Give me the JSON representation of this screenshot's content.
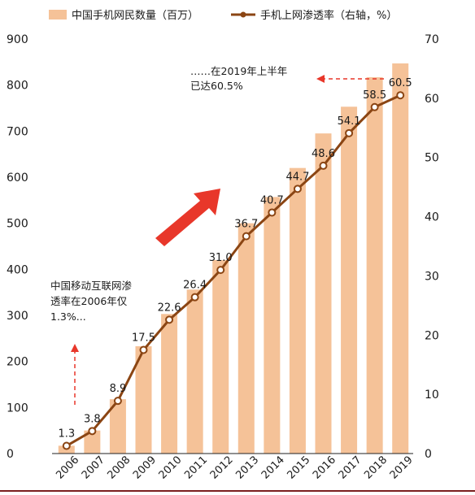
{
  "chart_data": {
    "type": "bar",
    "categories": [
      "2006",
      "2007",
      "2008",
      "2009",
      "2010",
      "2011",
      "2012",
      "2013",
      "2014",
      "2015",
      "2016",
      "2017",
      "2018",
      "2019"
    ],
    "series": [
      {
        "name": "中国手机网民数量（百万）",
        "type": "bar",
        "axis": "left",
        "color": "#f5c298",
        "values": [
          17,
          50,
          118,
          233,
          303,
          356,
          420,
          500,
          557,
          620,
          695,
          753,
          817,
          847
        ]
      },
      {
        "name": "手机上网渗透率（右轴，%）",
        "type": "line",
        "axis": "right",
        "color": "#8b4513",
        "values": [
          1.3,
          3.8,
          8.9,
          17.5,
          22.6,
          26.4,
          31.0,
          36.7,
          40.7,
          44.7,
          48.6,
          54.1,
          58.5,
          60.5
        ],
        "labels": [
          "1.3",
          "3.8",
          "8.9",
          "17.5",
          "22.6",
          "26.4",
          "31.0",
          "36.7",
          "40.7",
          "44.7",
          "48.6",
          "54.1",
          "58.5",
          "60.5"
        ]
      }
    ],
    "y_left": {
      "ylim": [
        0,
        900
      ],
      "ticks": [
        "0",
        "100",
        "200",
        "300",
        "400",
        "500",
        "600",
        "700",
        "800",
        "900"
      ]
    },
    "y_right": {
      "ylim": [
        0,
        70
      ],
      "ticks": [
        "0",
        "10",
        "20",
        "30",
        "40",
        "50",
        "60",
        "70"
      ]
    },
    "legend_position": "top",
    "annotations": [
      {
        "lines": [
          "……在2019年上半年",
          "已达60.5%"
        ]
      },
      {
        "lines": [
          "中国移动互联网渗",
          "透率在2006年仅",
          "1.3%..."
        ]
      }
    ]
  }
}
